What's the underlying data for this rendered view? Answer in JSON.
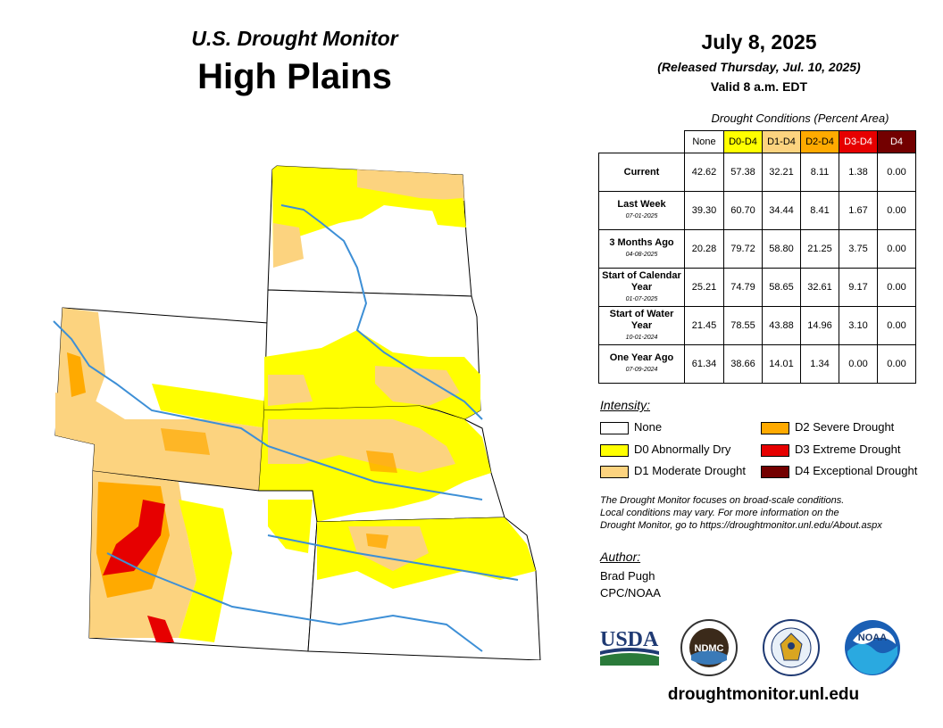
{
  "header": {
    "subtitle": "U.S. Drought Monitor",
    "region": "High Plains",
    "date": "July 8, 2025",
    "released": "(Released Thursday, Jul. 10, 2025)",
    "valid": "Valid 8 a.m. EDT"
  },
  "table": {
    "caption": "Drought Conditions (Percent Area)",
    "columns": [
      {
        "label": "None",
        "color": "#ffffff",
        "text_color": "#000000"
      },
      {
        "label": "D0-D4",
        "color": "#ffff00",
        "text_color": "#000000"
      },
      {
        "label": "D1-D4",
        "color": "#fcd37f",
        "text_color": "#000000"
      },
      {
        "label": "D2-D4",
        "color": "#ffaa00",
        "text_color": "#000000"
      },
      {
        "label": "D3-D4",
        "color": "#e60000",
        "text_color": "#ffffff"
      },
      {
        "label": "D4",
        "color": "#730000",
        "text_color": "#ffffff"
      }
    ],
    "rows": [
      {
        "label": "Current",
        "date": "",
        "values": [
          "42.62",
          "57.38",
          "32.21",
          "8.11",
          "1.38",
          "0.00"
        ]
      },
      {
        "label": "Last Week",
        "date": "07-01-2025",
        "values": [
          "39.30",
          "60.70",
          "34.44",
          "8.41",
          "1.67",
          "0.00"
        ]
      },
      {
        "label": "3 Months Ago",
        "date": "04-08-2025",
        "values": [
          "20.28",
          "79.72",
          "58.80",
          "21.25",
          "3.75",
          "0.00"
        ]
      },
      {
        "label": "Start of Calendar Year",
        "date": "01-07-2025",
        "values": [
          "25.21",
          "74.79",
          "58.65",
          "32.61",
          "9.17",
          "0.00"
        ]
      },
      {
        "label": "Start of Water Year",
        "date": "10-01-2024",
        "values": [
          "21.45",
          "78.55",
          "43.88",
          "14.96",
          "3.10",
          "0.00"
        ]
      },
      {
        "label": "One Year Ago",
        "date": "07-09-2024",
        "values": [
          "61.34",
          "38.66",
          "14.01",
          "1.34",
          "0.00",
          "0.00"
        ]
      }
    ]
  },
  "legend": {
    "title": "Intensity:",
    "items": [
      {
        "label": "None",
        "color": "#ffffff"
      },
      {
        "label": "D0 Abnormally Dry",
        "color": "#ffff00"
      },
      {
        "label": "D1 Moderate Drought",
        "color": "#fcd37f"
      },
      {
        "label": "D2 Severe Drought",
        "color": "#ffaa00"
      },
      {
        "label": "D3 Extreme Drought",
        "color": "#e60000"
      },
      {
        "label": "D4 Exceptional Drought",
        "color": "#730000"
      }
    ]
  },
  "note": {
    "line1": "The Drought Monitor focuses on broad-scale conditions.",
    "line2": "Local conditions may vary. For more information on the",
    "line3": "Drought Monitor, go to https://droughtmonitor.unl.edu/About.aspx"
  },
  "author": {
    "title": "Author:",
    "name": "Brad Pugh",
    "org": "CPC/NOAA"
  },
  "logos": {
    "usda": "USDA",
    "ndmc": "NDMC",
    "noaa": "NOAA"
  },
  "website": "droughtmonitor.unl.edu"
}
